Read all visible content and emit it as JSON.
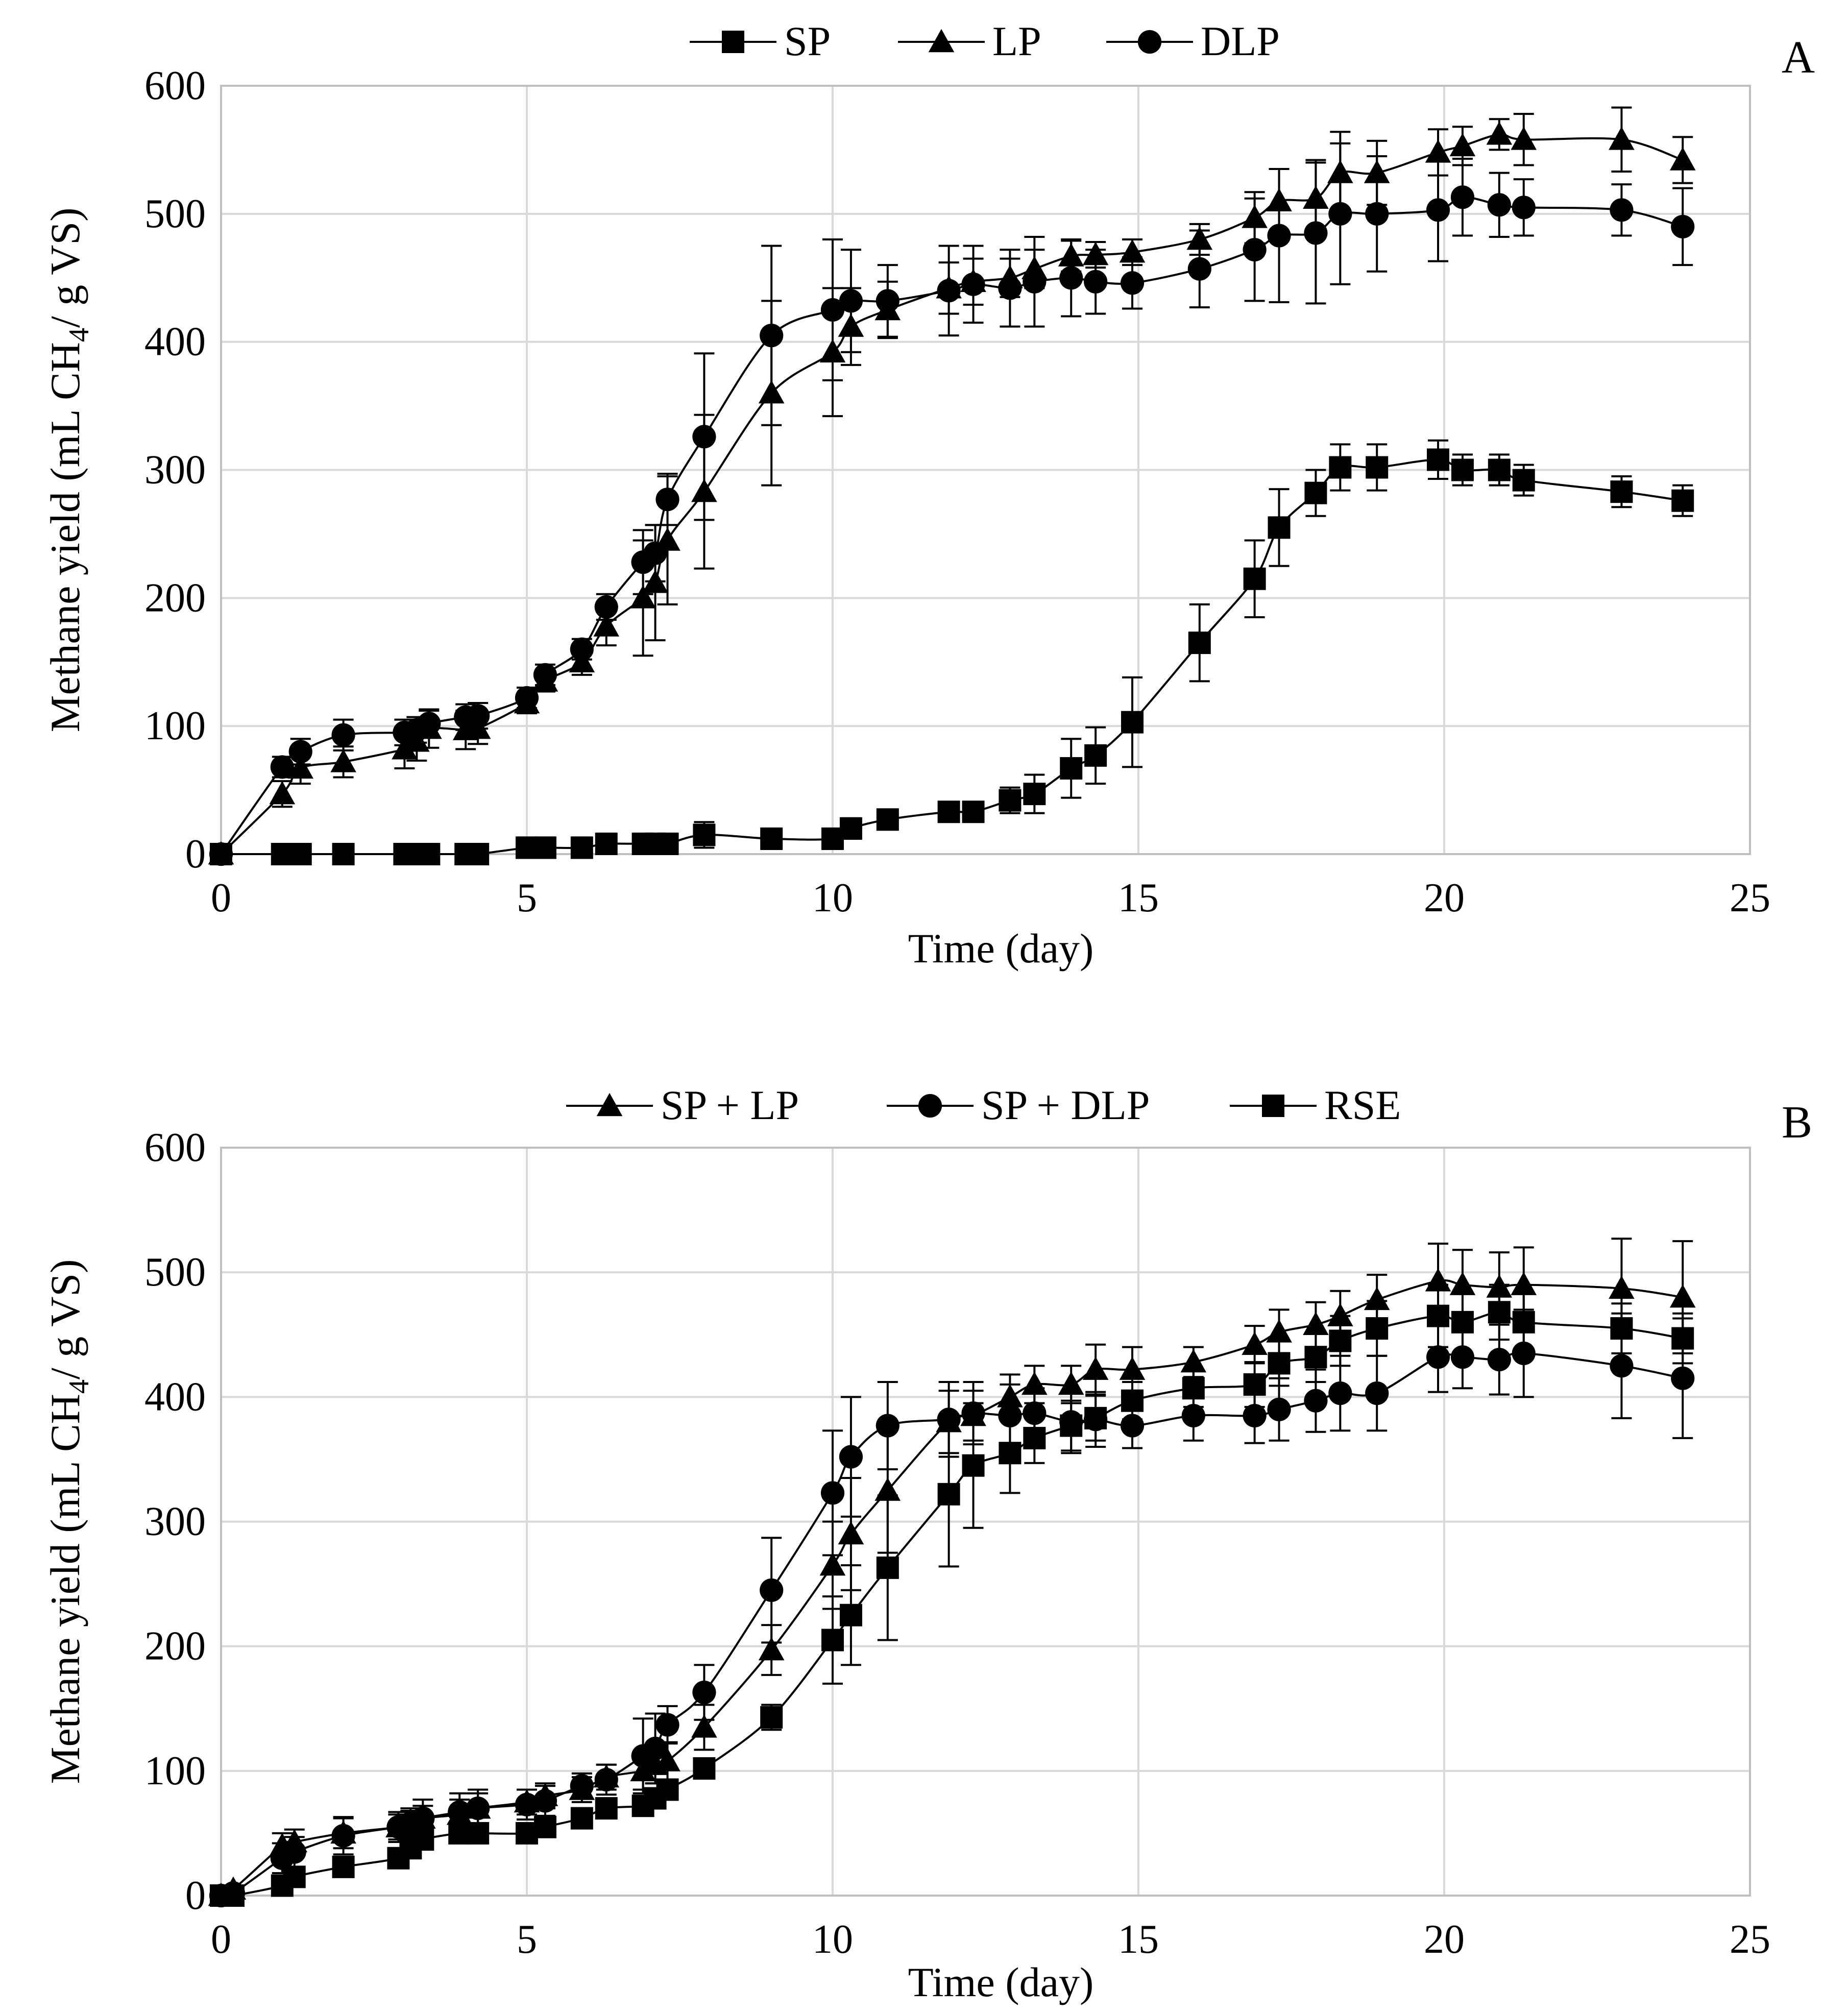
{
  "chart_data": [
    {
      "panel_label": "A",
      "type": "line",
      "xlabel": "Time (day)",
      "ylabel": "Methane yield (mL CH",
      "ylabel_sub": "4",
      "ylabel_tail": "/ g VS)",
      "xlim": [
        0,
        25
      ],
      "ylim": [
        0,
        600
      ],
      "xticks": [
        0,
        5,
        10,
        15,
        20,
        25
      ],
      "yticks": [
        0,
        100,
        200,
        300,
        400,
        500,
        600
      ],
      "grid": true,
      "legend_position": "top-center",
      "series": [
        {
          "name": "SP",
          "marker": "square",
          "x": [
            0,
            1,
            1.3,
            2,
            3,
            3.2,
            3.4,
            4,
            4.2,
            5,
            5.3,
            5.9,
            6.3,
            6.9,
            7.1,
            7.3,
            7.9,
            9,
            10,
            10.3,
            10.9,
            11.9,
            12.3,
            12.9,
            13.3,
            13.9,
            14.3,
            14.9,
            16,
            16.9,
            17.3,
            17.9,
            18.3,
            18.9,
            19.9,
            20.3,
            20.9,
            21.3,
            22.9,
            23.9
          ],
          "y": [
            0,
            0,
            0,
            0,
            0,
            0,
            0,
            0,
            0,
            5,
            5,
            5,
            8,
            8,
            8,
            8,
            15,
            12,
            12,
            20,
            27,
            33,
            33,
            42,
            47,
            67,
            77,
            103,
            165,
            215,
            255,
            282,
            302,
            302,
            308,
            300,
            300,
            292,
            283,
            276
          ],
          "err": [
            0,
            0,
            0,
            0,
            0,
            0,
            0,
            0,
            0,
            8,
            8,
            8,
            8,
            8,
            8,
            8,
            10,
            8,
            8,
            8,
            6,
            6,
            6,
            10,
            15,
            23,
            22,
            35,
            30,
            30,
            30,
            18,
            18,
            18,
            15,
            12,
            12,
            12,
            12,
            12
          ]
        },
        {
          "name": "LP",
          "marker": "triangle",
          "x": [
            0,
            1,
            1.3,
            2,
            3,
            3.2,
            3.4,
            4,
            4.2,
            5,
            5.3,
            5.9,
            6.3,
            6.9,
            7.1,
            7.3,
            7.9,
            9,
            10,
            10.3,
            10.9,
            11.9,
            12.3,
            12.9,
            13.3,
            13.9,
            14.3,
            14.9,
            16,
            16.9,
            17.3,
            17.9,
            18.3,
            18.9,
            19.9,
            20.3,
            20.9,
            21.3,
            22.9,
            23.9
          ],
          "y": [
            0,
            47,
            67,
            72,
            82,
            88,
            98,
            97,
            98,
            118,
            135,
            150,
            178,
            200,
            212,
            245,
            283,
            360,
            392,
            412,
            425,
            442,
            447,
            450,
            457,
            467,
            468,
            470,
            480,
            497,
            510,
            512,
            532,
            532,
            548,
            553,
            562,
            558,
            558,
            542
          ],
          "err": [
            0,
            10,
            12,
            12,
            15,
            15,
            15,
            15,
            12,
            8,
            8,
            10,
            15,
            45,
            45,
            50,
            60,
            72,
            50,
            30,
            22,
            20,
            18,
            15,
            15,
            12,
            10,
            10,
            12,
            20,
            25,
            30,
            32,
            25,
            18,
            15,
            12,
            20,
            25,
            18
          ]
        },
        {
          "name": "DLP",
          "marker": "circle",
          "x": [
            0,
            1,
            1.3,
            2,
            3,
            3.2,
            3.4,
            4,
            4.2,
            5,
            5.3,
            5.9,
            6.3,
            6.9,
            7.1,
            7.3,
            7.9,
            9,
            10,
            10.3,
            10.9,
            11.9,
            12.3,
            12.9,
            13.3,
            13.9,
            14.3,
            14.9,
            16,
            16.9,
            17.3,
            17.9,
            18.3,
            18.9,
            19.9,
            20.3,
            20.9,
            21.3,
            22.9,
            23.9
          ],
          "y": [
            0,
            68,
            80,
            93,
            95,
            97,
            102,
            107,
            108,
            122,
            140,
            160,
            193,
            228,
            235,
            277,
            326,
            405,
            425,
            432,
            432,
            440,
            445,
            442,
            447,
            450,
            447,
            446,
            457,
            472,
            483,
            485,
            500,
            500,
            503,
            513,
            507,
            505,
            503,
            490
          ],
          "err": [
            0,
            8,
            10,
            12,
            10,
            10,
            10,
            10,
            10,
            8,
            8,
            8,
            10,
            25,
            22,
            20,
            65,
            70,
            55,
            40,
            28,
            35,
            30,
            30,
            35,
            30,
            25,
            20,
            30,
            40,
            52,
            55,
            55,
            45,
            40,
            30,
            25,
            22,
            20,
            30
          ]
        }
      ]
    },
    {
      "panel_label": "B",
      "type": "line",
      "xlabel": "Time (day)",
      "ylabel": "Methane yield (mL CH",
      "ylabel_sub": "4",
      "ylabel_tail": "/ g VS)",
      "xlim": [
        0,
        25
      ],
      "ylim": [
        0,
        600
      ],
      "xticks": [
        0,
        5,
        10,
        15,
        20,
        25
      ],
      "yticks": [
        0,
        100,
        200,
        300,
        400,
        500,
        600
      ],
      "grid": true,
      "legend_position": "top-center",
      "series": [
        {
          "name": "SP + LP",
          "marker": "triangle",
          "x": [
            0,
            0.2,
            1,
            1.2,
            2,
            2.9,
            3.1,
            3.3,
            3.9,
            4.2,
            5,
            5.3,
            5.9,
            6.3,
            6.9,
            7.1,
            7.3,
            7.9,
            9,
            10,
            10.3,
            10.9,
            11.9,
            12.3,
            12.9,
            13.3,
            13.9,
            14.3,
            14.9,
            15.9,
            16.9,
            17.3,
            17.9,
            18.3,
            18.9,
            19.9,
            20.3,
            20.9,
            21.3,
            22.9,
            23.9
          ],
          "y": [
            0,
            5,
            40,
            43,
            50,
            55,
            58,
            62,
            65,
            70,
            75,
            80,
            85,
            95,
            100,
            105,
            108,
            135,
            197,
            265,
            290,
            325,
            380,
            385,
            400,
            410,
            410,
            422,
            422,
            428,
            442,
            452,
            458,
            465,
            478,
            493,
            490,
            488,
            490,
            487,
            480
          ],
          "err": [
            0,
            3,
            10,
            10,
            12,
            10,
            10,
            10,
            12,
            12,
            10,
            10,
            10,
            10,
            15,
            15,
            15,
            18,
            20,
            35,
            45,
            50,
            25,
            20,
            18,
            15,
            15,
            20,
            18,
            12,
            15,
            18,
            18,
            20,
            20,
            30,
            28,
            28,
            30,
            40,
            45
          ]
        },
        {
          "name": "SP + DLP",
          "marker": "circle",
          "x": [
            0,
            0.2,
            1,
            1.2,
            2,
            2.9,
            3.1,
            3.3,
            3.9,
            4.2,
            5,
            5.3,
            5.9,
            6.3,
            6.9,
            7.1,
            7.3,
            7.9,
            9,
            10,
            10.3,
            10.9,
            11.9,
            12.3,
            12.9,
            13.3,
            13.9,
            14.3,
            14.9,
            15.9,
            16.9,
            17.3,
            17.9,
            18.3,
            18.9,
            19.9,
            20.3,
            20.9,
            21.3,
            22.9,
            23.9
          ],
          "y": [
            0,
            2,
            30,
            35,
            48,
            55,
            58,
            62,
            67,
            70,
            73,
            76,
            88,
            93,
            112,
            118,
            137,
            163,
            245,
            323,
            352,
            377,
            382,
            387,
            385,
            387,
            380,
            382,
            377,
            385,
            385,
            390,
            397,
            403,
            403,
            432,
            432,
            430,
            435,
            425,
            415
          ],
          "err": [
            0,
            3,
            12,
            12,
            15,
            12,
            12,
            15,
            15,
            15,
            12,
            12,
            10,
            12,
            30,
            28,
            15,
            22,
            42,
            50,
            48,
            35,
            30,
            25,
            25,
            20,
            25,
            22,
            18,
            20,
            22,
            25,
            25,
            30,
            30,
            28,
            25,
            28,
            35,
            42,
            48
          ]
        },
        {
          "name": "RSE",
          "marker": "square",
          "x": [
            0,
            0.2,
            1,
            1.2,
            2,
            2.9,
            3.1,
            3.3,
            3.9,
            4.2,
            5,
            5.3,
            5.9,
            6.3,
            6.9,
            7.1,
            7.3,
            7.9,
            9,
            10,
            10.3,
            10.9,
            11.9,
            12.3,
            12.9,
            13.3,
            13.9,
            14.3,
            14.9,
            15.9,
            16.9,
            17.3,
            17.9,
            18.3,
            18.9,
            19.9,
            20.3,
            20.9,
            21.3,
            22.9,
            23.9
          ],
          "y": [
            0,
            0,
            8,
            15,
            23,
            30,
            38,
            45,
            50,
            50,
            50,
            55,
            62,
            70,
            72,
            78,
            85,
            102,
            143,
            205,
            225,
            263,
            322,
            345,
            355,
            367,
            377,
            383,
            397,
            407,
            410,
            427,
            432,
            445,
            455,
            465,
            460,
            468,
            460,
            455,
            447
          ],
          "err": [
            0,
            0,
            5,
            5,
            8,
            8,
            8,
            8,
            8,
            8,
            8,
            8,
            8,
            8,
            8,
            8,
            8,
            5,
            10,
            35,
            40,
            58,
            58,
            50,
            32,
            20,
            20,
            18,
            15,
            15,
            18,
            18,
            20,
            20,
            22,
            25,
            25,
            22,
            25,
            20,
            20
          ]
        }
      ]
    }
  ]
}
